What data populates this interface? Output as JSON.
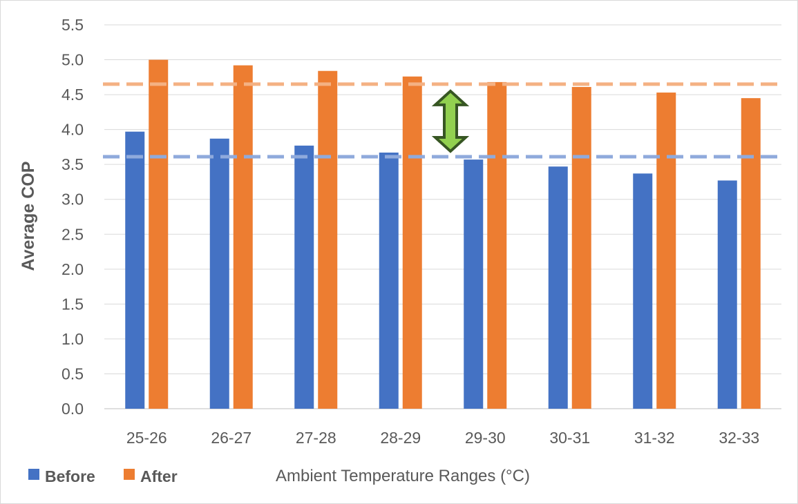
{
  "chart_data": {
    "type": "bar",
    "title": "",
    "xlabel": "Ambient Temperature Ranges (°C)",
    "ylabel": "Average COP",
    "ylim": [
      0,
      5.5
    ],
    "yticks": [
      "0.0",
      "0.5",
      "1.0",
      "1.5",
      "2.0",
      "2.5",
      "3.0",
      "3.5",
      "4.0",
      "4.5",
      "5.0",
      "5.5"
    ],
    "grid": true,
    "categories": [
      "25-26",
      "26-27",
      "27-28",
      "28-29",
      "29-30",
      "30-31",
      "31-32",
      "32-33"
    ],
    "series": [
      {
        "name": "Before",
        "color": "#4472C4",
        "values": [
          3.97,
          3.87,
          3.77,
          3.67,
          3.57,
          3.47,
          3.37,
          3.27
        ]
      },
      {
        "name": "After",
        "color": "#ED7D31",
        "values": [
          5.0,
          4.92,
          4.84,
          4.76,
          4.68,
          4.61,
          4.53,
          4.45
        ]
      }
    ],
    "reference_lines": [
      {
        "series": "After",
        "value": 4.65,
        "style": "dashed",
        "color": "#F4B183"
      },
      {
        "series": "Before",
        "value": 3.61,
        "style": "dashed",
        "color": "#8FAADC"
      }
    ],
    "annotations": [
      {
        "type": "double-arrow",
        "from": 3.61,
        "to": 4.65,
        "color": "#92D050",
        "stroke": "#375623"
      }
    ],
    "legend_position": "bottom-left"
  }
}
